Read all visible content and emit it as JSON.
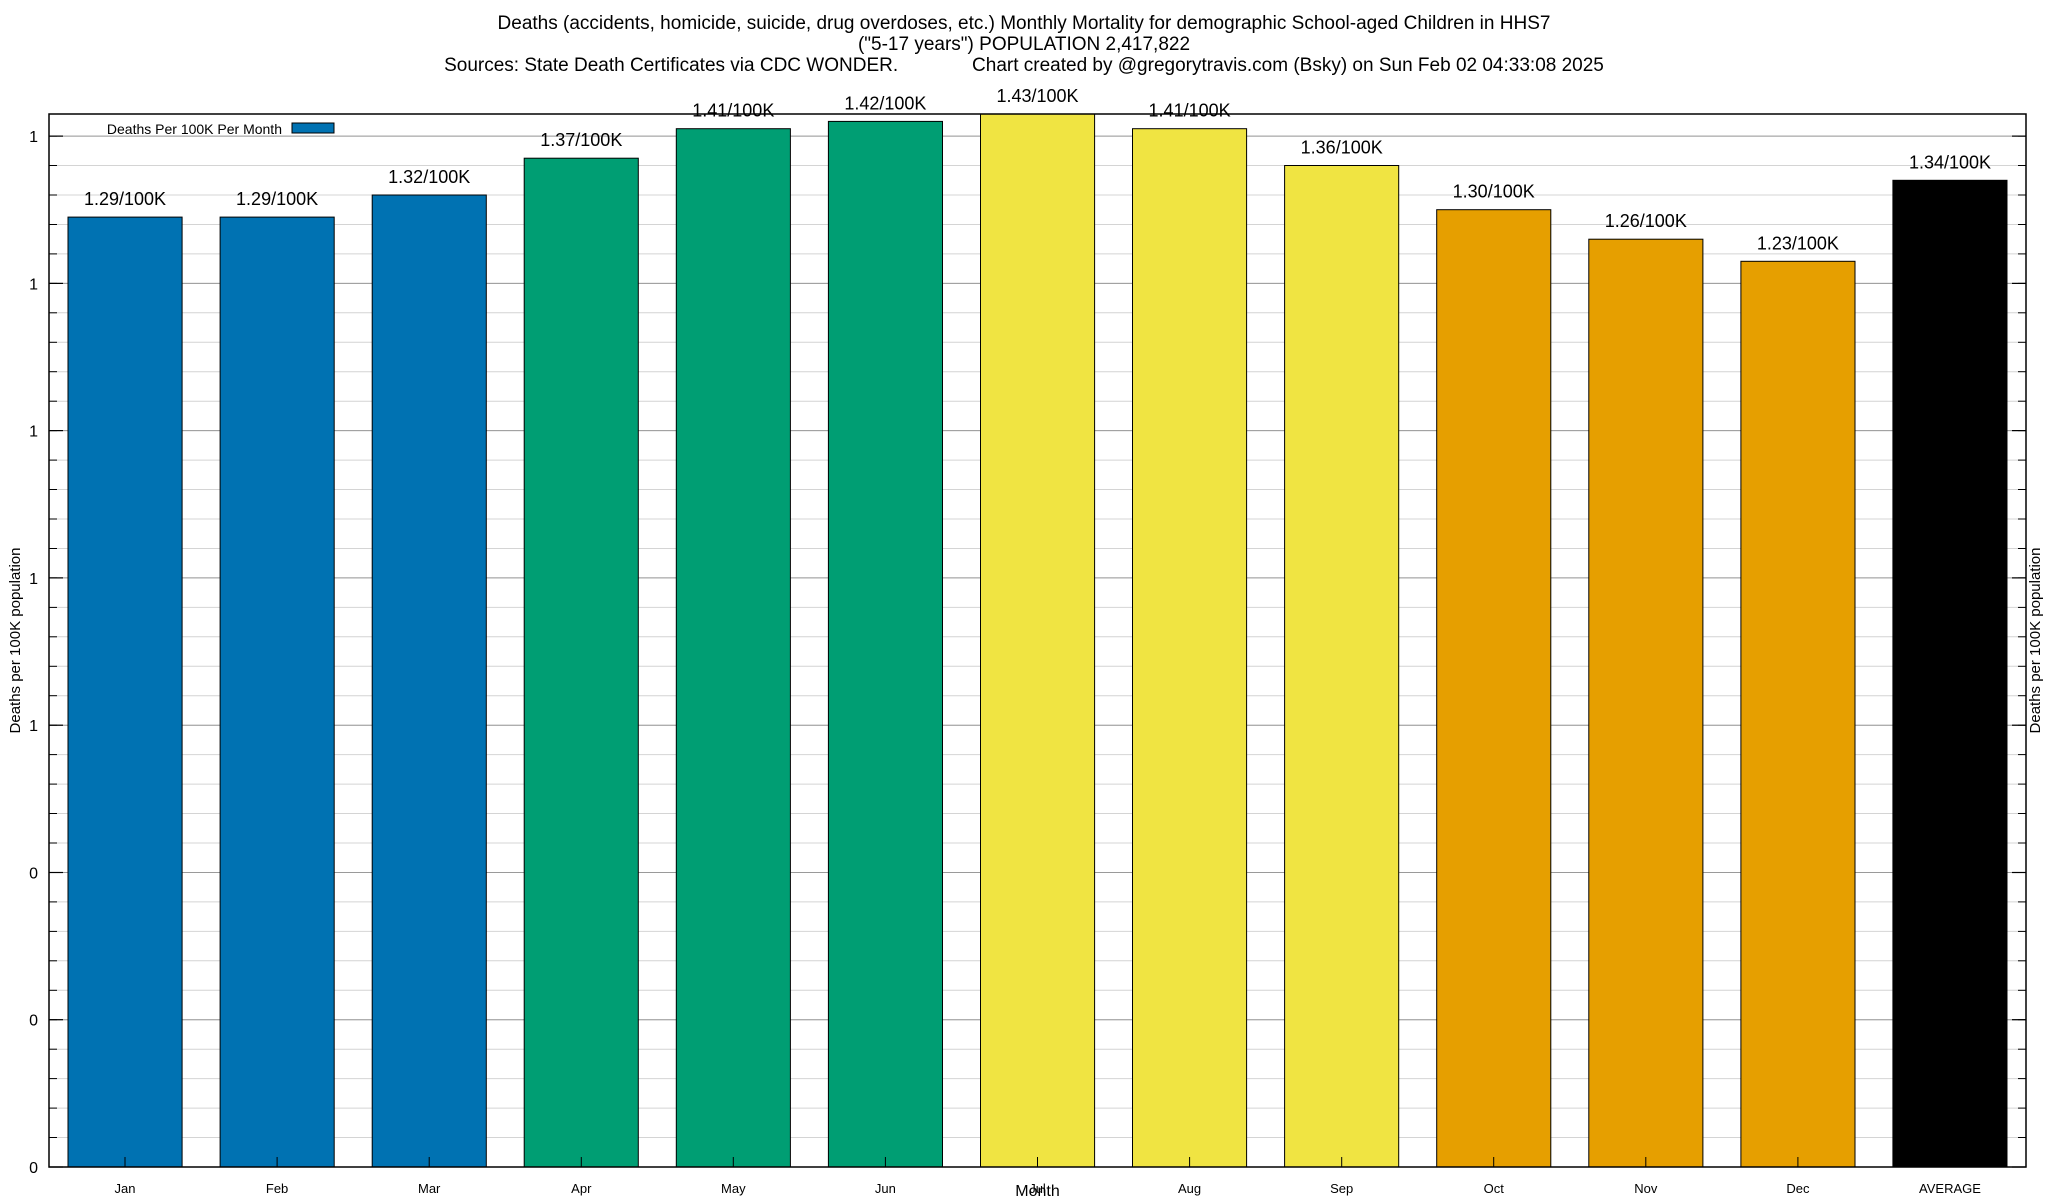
{
  "chart_data": {
    "type": "bar",
    "title_lines": [
      "Deaths (accidents, homicide, suicide, drug overdoses, etc.) Monthly Mortality for demographic School-aged Children in HHS7",
      "(\"5-17 years\") POPULATION 2,417,822",
      "Sources: State Death Certificates via CDC WONDER.              Chart created by @gregorytravis.com (Bsky) on Sun Feb 02 04:33:08 2025"
    ],
    "xlabel": "Month",
    "ylabel": "Deaths per 100K population",
    "y2label": "Deaths per 100K population",
    "ylim": [
      0,
      1.43
    ],
    "y_tick_values": [
      0,
      0.2,
      0.4,
      0.6,
      0.8,
      1.0,
      1.2,
      1.4
    ],
    "y_tick_labels": [
      "0",
      "0",
      "0",
      "1",
      "1",
      "1",
      "1",
      "1"
    ],
    "minor_ticks_per_major": 5,
    "grid": true,
    "legend": {
      "position": "top-left",
      "label": "Deaths Per 100K Per Month",
      "color": "#0072b2"
    },
    "categories": [
      "Jan",
      "Feb",
      "Mar",
      "Apr",
      "May",
      "Jun",
      "Jul",
      "Aug",
      "Sep",
      "Oct",
      "Nov",
      "Dec",
      "AVERAGE"
    ],
    "values": [
      1.29,
      1.29,
      1.32,
      1.37,
      1.41,
      1.42,
      1.43,
      1.41,
      1.36,
      1.3,
      1.26,
      1.23,
      1.34
    ],
    "data_labels": [
      "1.29/100K",
      "1.29/100K",
      "1.32/100K",
      "1.37/100K",
      "1.41/100K",
      "1.42/100K",
      "1.43/100K",
      "1.41/100K",
      "1.36/100K",
      "1.30/100K",
      "1.26/100K",
      "1.23/100K",
      "1.34/100K"
    ],
    "colors": [
      "#0072b2",
      "#0072b2",
      "#0072b2",
      "#009e73",
      "#009e73",
      "#009e73",
      "#f0e442",
      "#f0e442",
      "#f0e442",
      "#e69f00",
      "#e69f00",
      "#e69f00",
      "#000000"
    ]
  }
}
